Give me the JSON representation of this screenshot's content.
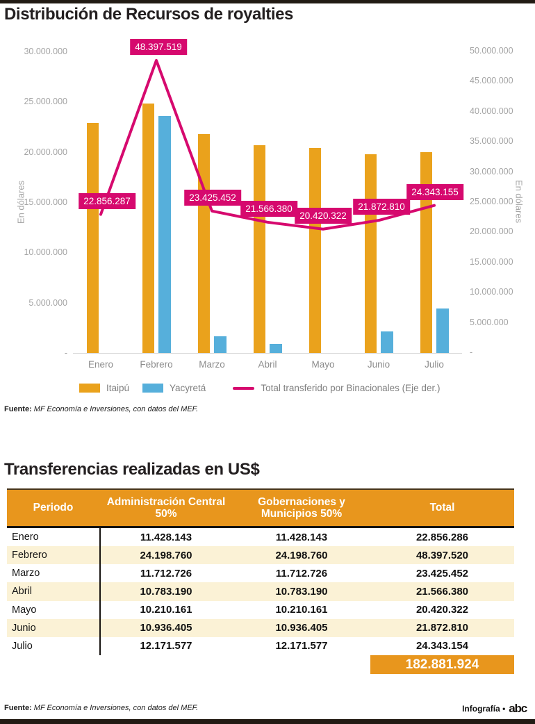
{
  "page": {
    "title1": "Distribución de Recursos de royalties",
    "title2": "Transferencias realizadas en US$",
    "source_label": "Fuente:",
    "source_text": "MF Economía e Inversiones, con datos del MEF.",
    "footer_right": "Infografía •",
    "footer_logo": "abc"
  },
  "chart_data": {
    "type": "combo-bar-line",
    "categories": [
      "Enero",
      "Febrero",
      "Marzo",
      "Abril",
      "Mayo",
      "Junio",
      "Julio"
    ],
    "series": [
      {
        "name": "Itaipú",
        "type": "bar",
        "axis": "left",
        "color": "#eaa21c",
        "values": [
          22856287,
          24800000,
          21800000,
          20700000,
          20420322,
          19750000,
          19950000
        ],
        "bar_values_estimated": true
      },
      {
        "name": "Yacyretá",
        "type": "bar",
        "axis": "left",
        "color": "#56afdb",
        "values": [
          0,
          23597519,
          1625452,
          866380,
          0,
          2122810,
          4393155
        ],
        "bar_values_estimated": true
      },
      {
        "name": "Total transferido por Binacionales (Eje der.)",
        "type": "line",
        "axis": "right",
        "color": "#d6096e",
        "values": [
          22856287,
          48397519,
          23425452,
          21566380,
          20420322,
          21872810,
          24343155
        ],
        "labels": [
          "22.856.287",
          "48.397.519",
          "23.425.452",
          "21.566.380",
          "20.420.322",
          "21.872.810",
          "24.343.155"
        ]
      }
    ],
    "left_axis": {
      "title": "En dólares",
      "tick_labels": [
        "30.000.000",
        "25.000.000",
        "20.000.000",
        "15.000.000",
        "10.000.000",
        "5.000.000",
        "-"
      ],
      "tick_values": [
        30000000,
        25000000,
        20000000,
        15000000,
        10000000,
        5000000,
        0
      ],
      "max": 30000000
    },
    "right_axis": {
      "title": "En dólares",
      "tick_labels": [
        "50.000.000",
        "45.000.000",
        "40.000.000",
        "35.000.000",
        "30.000.000",
        "25.000.000",
        "20.000.000",
        "15.000.000",
        "10.000.000",
        "5.000.000",
        "-"
      ],
      "tick_values": [
        50000000,
        45000000,
        40000000,
        35000000,
        30000000,
        25000000,
        20000000,
        15000000,
        10000000,
        5000000,
        0
      ],
      "max": 50000000
    },
    "grid": false,
    "legend_position": "bottom"
  },
  "table": {
    "headers": [
      "Periodo",
      "Administración Central 50%",
      "Gobernaciones y Municipios 50%",
      "Total"
    ],
    "rows": [
      [
        "Enero",
        "11.428.143",
        "11.428.143",
        "22.856.286"
      ],
      [
        "Febrero",
        "24.198.760",
        "24.198.760",
        "48.397.520"
      ],
      [
        "Marzo",
        "11.712.726",
        "11.712.726",
        "23.425.452"
      ],
      [
        "Abril",
        "10.783.190",
        "10.783.190",
        "21.566.380"
      ],
      [
        "Mayo",
        "10.210.161",
        "10.210.161",
        "20.420.322"
      ],
      [
        "Junio",
        "10.936.405",
        "10.936.405",
        "21.872.810"
      ],
      [
        "Julio",
        "12.171.577",
        "12.171.577",
        "24.343.154"
      ]
    ],
    "grand_total": "182.881.924"
  },
  "colors": {
    "bar_itaipu": "#eaa21c",
    "bar_yacyreta": "#56afdb",
    "line_total": "#d6096e",
    "table_header": "#e8961d",
    "row_alt": "#fbf2d6",
    "axis_text": "#a5a5a5",
    "black_bar": "#221b14"
  }
}
